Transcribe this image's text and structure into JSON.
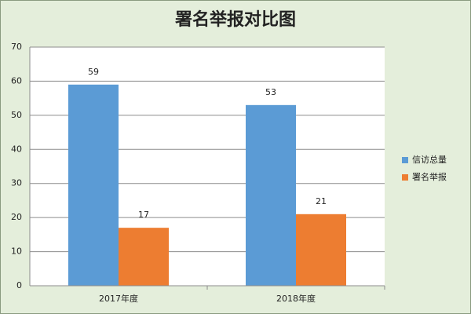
{
  "chart_data": {
    "type": "bar",
    "title": "署名举报对比图",
    "categories": [
      "2017年度",
      "2018年度"
    ],
    "series": [
      {
        "name": "信访总量",
        "color": "#5b9bd5",
        "values": [
          59,
          53
        ]
      },
      {
        "name": "署名举报",
        "color": "#ed7d31",
        "values": [
          17,
          21
        ]
      }
    ],
    "ylim": [
      0,
      70
    ],
    "yticks": [
      0,
      10,
      20,
      30,
      40,
      50,
      60,
      70
    ],
    "grid": true,
    "legend": "right"
  }
}
